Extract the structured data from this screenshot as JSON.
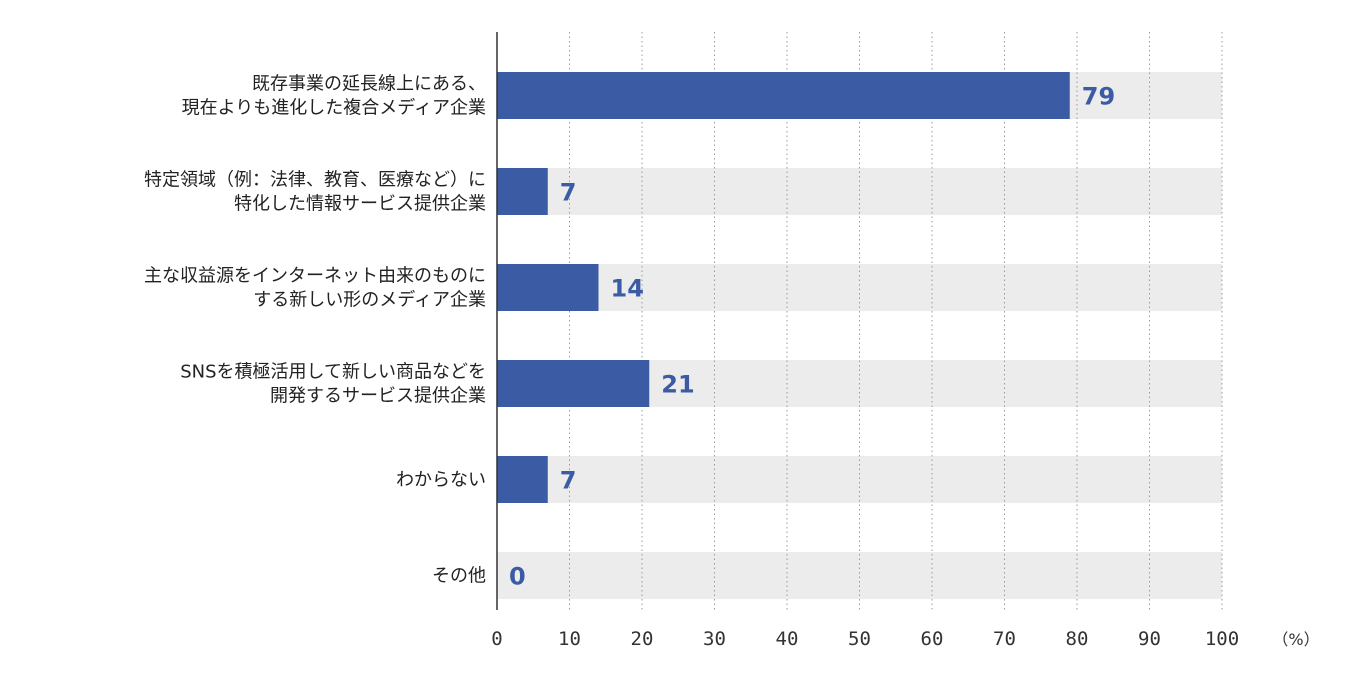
{
  "chart_data": {
    "type": "bar",
    "orientation": "horizontal",
    "categories": [
      [
        "既存事業の延長線上にある、",
        "現在よりも進化した複合メディア企業"
      ],
      [
        "特定領域（例：法律、教育、医療など）に",
        "特化した情報サービス提供企業"
      ],
      [
        "主な収益源をインターネット由来のものに",
        "する新しい形のメディア企業"
      ],
      [
        "SNSを積極活用して新しい商品などを",
        "開発するサービス提供企業"
      ],
      [
        "わからない"
      ],
      [
        "その他"
      ]
    ],
    "values": [
      79,
      7,
      14,
      21,
      7,
      0
    ],
    "value_labels": [
      "79",
      "7",
      "14",
      "21",
      "7",
      "0"
    ],
    "xlim": [
      0,
      100
    ],
    "xticks": [
      "0",
      "10",
      "20",
      "30",
      "40",
      "50",
      "60",
      "70",
      "80",
      "90",
      "100"
    ],
    "unit": "（%）",
    "grid": "vertical dotted",
    "colors": {
      "bar": "#3b5ba5",
      "track": "#ececec",
      "value_label": "#3b5ba5",
      "grid": "#9a9a9a",
      "axis": "#333333"
    }
  }
}
